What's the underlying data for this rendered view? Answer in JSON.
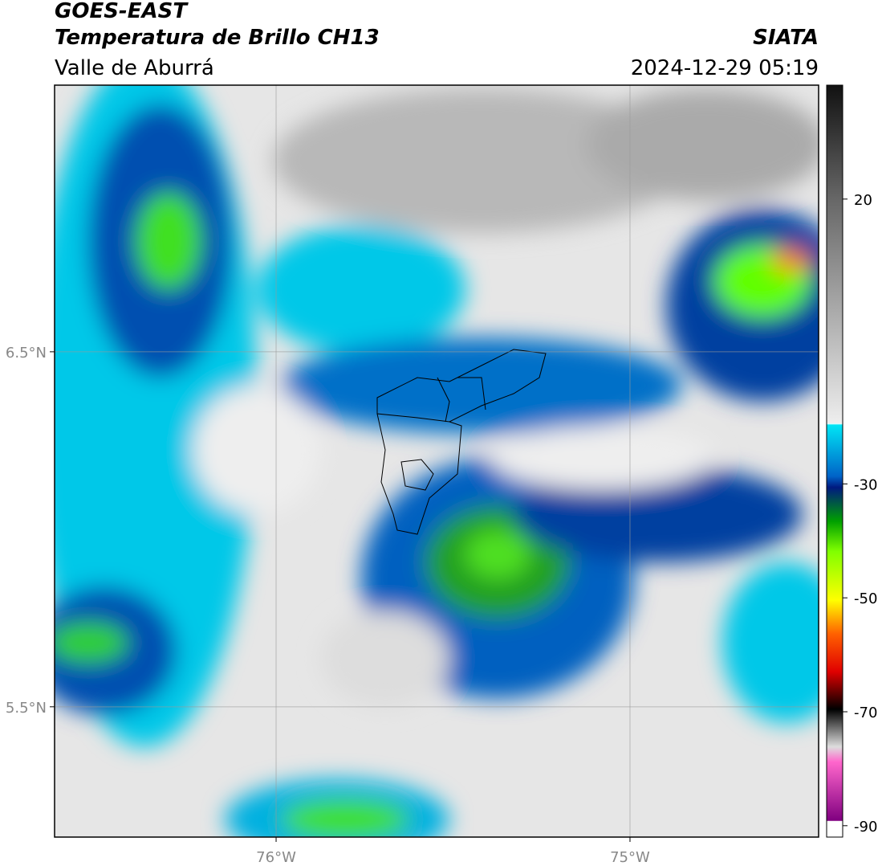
{
  "header": {
    "title": "GOES-EAST",
    "subtitle": "Temperatura de Brillo CH13",
    "region": "Valle de Aburrá",
    "source": "SIATA",
    "datetime": "2024-12-29 05:19"
  },
  "map": {
    "xlim": [
      -76.626,
      -74.467
    ],
    "ylim": [
      5.133,
      7.251
    ],
    "xticks": [
      {
        "value": -76,
        "label": "76°W"
      },
      {
        "value": -75,
        "label": "75°W"
      }
    ],
    "yticks": [
      {
        "value": 6.5,
        "label": "6.5°N"
      },
      {
        "value": 5.5,
        "label": "5.5°N"
      }
    ],
    "grid": true
  },
  "colorbar": {
    "ylim": [
      -92,
      40
    ],
    "yticks": [
      20,
      -30,
      -50,
      -70,
      -90
    ]
  }
}
